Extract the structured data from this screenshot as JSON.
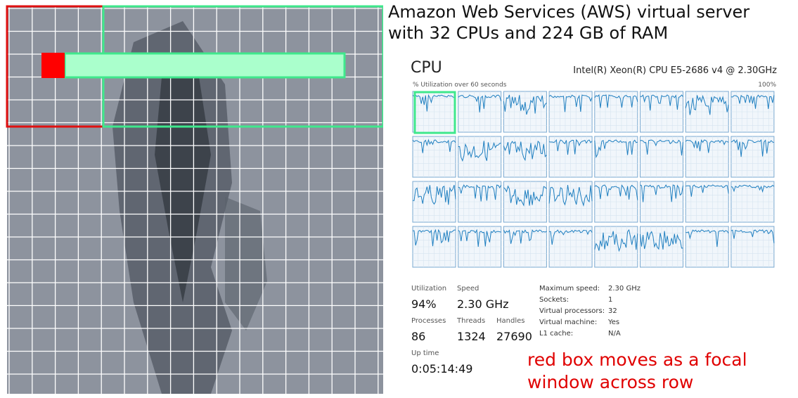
{
  "annotation_top": {
    "lines": [
      "Amazon Web Services (AWS) virtual server",
      "with 32 CPUs and 224 GB of RAM"
    ]
  },
  "cpu_panel": {
    "title": "CPU",
    "cpu_model": "Intel(R) Xeon(R) CPU E5-2686 v4 @ 2.30GHz",
    "graph_label": "% Utilization over 60 seconds",
    "graph_max": "100%",
    "stats": [
      {
        "label": "Utilization",
        "value": "94%"
      },
      {
        "label": "Speed",
        "value": "2.30 GHz"
      },
      {
        "label": "Processes",
        "value": "86"
      },
      {
        "label": "Threads",
        "value": "1324"
      },
      {
        "label": "Handles",
        "value": "27690"
      },
      {
        "label": "Up time",
        "value": "0:05:14:49"
      }
    ],
    "details": [
      {
        "label": "Maximum speed:",
        "value": "2.30 GHz"
      },
      {
        "label": "Sockets:",
        "value": "1"
      },
      {
        "label": "Virtual processors:",
        "value": "32"
      },
      {
        "label": "Virtual machine:",
        "value": "Yes"
      },
      {
        "label": "L1 cache:",
        "value": "N/A"
      }
    ]
  },
  "annotation_bottom": {
    "lines": [
      "red box moves as a focal",
      "window across row"
    ]
  }
}
